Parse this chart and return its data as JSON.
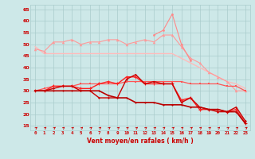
{
  "x": [
    0,
    1,
    2,
    3,
    4,
    5,
    6,
    7,
    8,
    9,
    10,
    11,
    12,
    13,
    14,
    15,
    16,
    17,
    18,
    19,
    20,
    21,
    22,
    23
  ],
  "line1": [
    49,
    46,
    46,
    46,
    46,
    46,
    46,
    46,
    46,
    46,
    46,
    46,
    46,
    46,
    46,
    46,
    44,
    42,
    40,
    38,
    36,
    34,
    33,
    31
  ],
  "line2": [
    48,
    47,
    51,
    51,
    52,
    50,
    51,
    51,
    52,
    52,
    50,
    51,
    52,
    51,
    54,
    54,
    49,
    44,
    42,
    38,
    36,
    34,
    30,
    30
  ],
  "line3": [
    30,
    30,
    32,
    32,
    32,
    31,
    31,
    33,
    34,
    33,
    36,
    36,
    33,
    33,
    33,
    33,
    26,
    27,
    22,
    22,
    22,
    21,
    22,
    16
  ],
  "line4": [
    30,
    30,
    31,
    32,
    32,
    30,
    30,
    27,
    27,
    27,
    35,
    37,
    33,
    34,
    33,
    33,
    25,
    27,
    23,
    22,
    21,
    21,
    23,
    17
  ],
  "line5": [
    30,
    31,
    32,
    32,
    32,
    33,
    33,
    33,
    33,
    33,
    34,
    34,
    34,
    34,
    34,
    34,
    34,
    33,
    33,
    33,
    33,
    32,
    32,
    30
  ],
  "line6": [
    30,
    30,
    30,
    30,
    30,
    30,
    30,
    30,
    28,
    27,
    27,
    25,
    25,
    25,
    24,
    24,
    24,
    23,
    23,
    22,
    22,
    21,
    21,
    16
  ],
  "line7_x": [
    13,
    14,
    15,
    16,
    17
  ],
  "line7_y": [
    54,
    56,
    63,
    50,
    43
  ],
  "ylabel_ticks": [
    15,
    20,
    25,
    30,
    35,
    40,
    45,
    50,
    55,
    60,
    65
  ],
  "background_color": "#cde8e8",
  "grid_color": "#aacccc",
  "line1_color": "#ffbbbb",
  "line2_color": "#ff9999",
  "line3_color": "#ff2222",
  "line4_color": "#cc0000",
  "line5_color": "#ff5555",
  "line6_color": "#bb0000",
  "line7_color": "#ff8888",
  "arrow_color": "#cc0000",
  "xlabel": "Vent moyen/en rafales ( km/h )",
  "tick_color": "#cc0000",
  "ylim": [
    13,
    67
  ],
  "xlim": [
    -0.5,
    23.5
  ]
}
